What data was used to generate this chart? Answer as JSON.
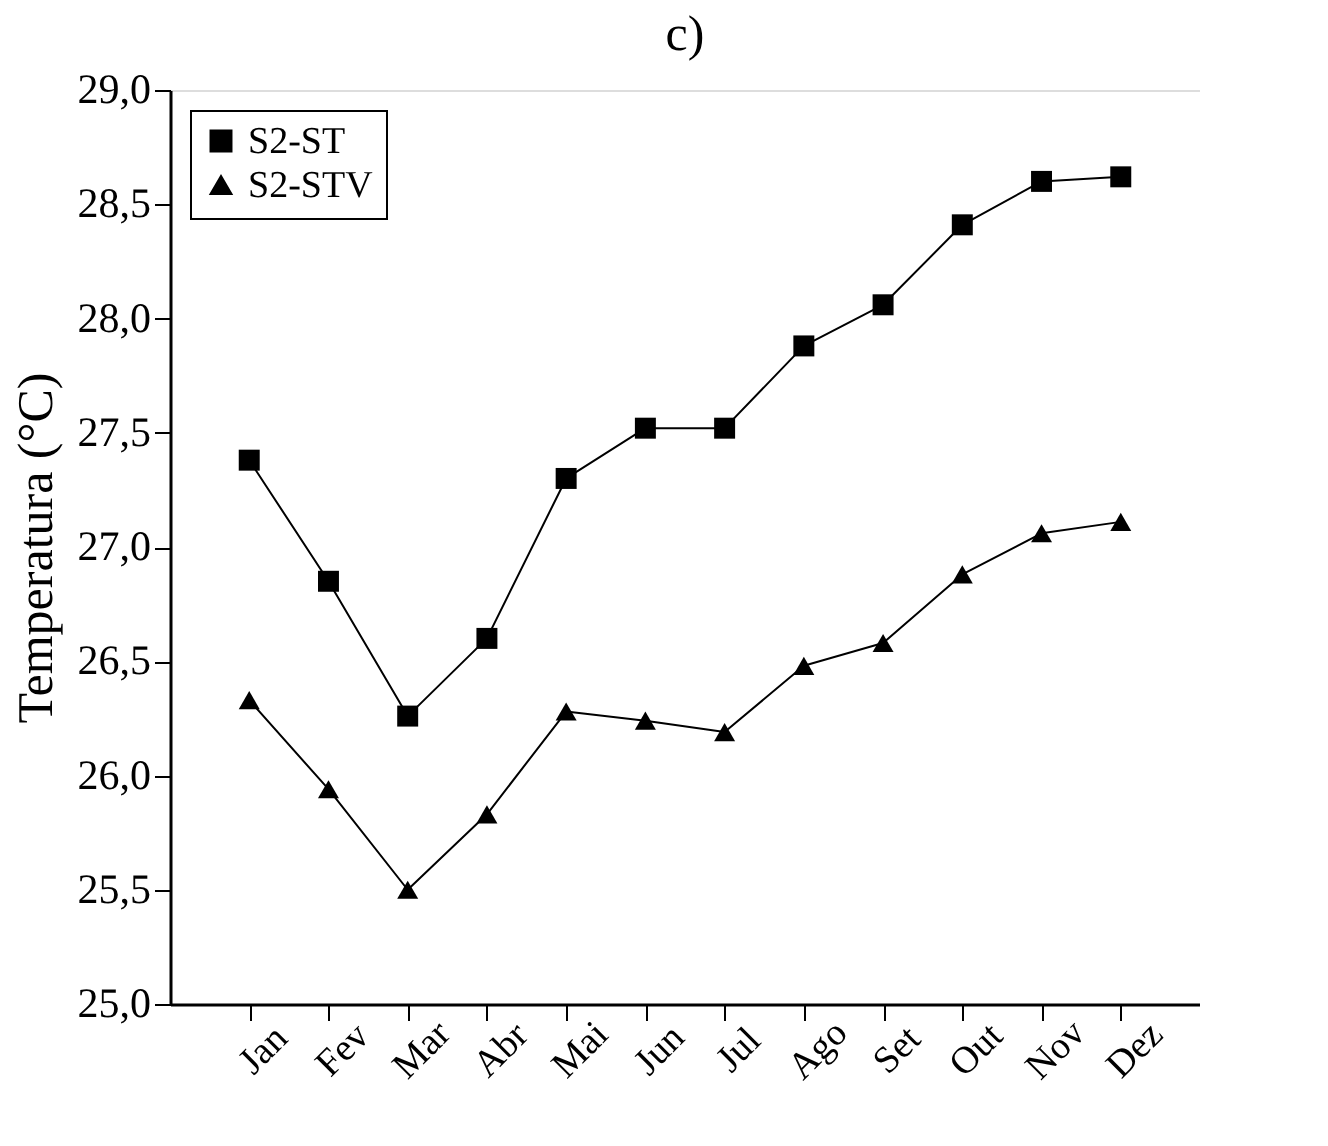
{
  "chart_data": {
    "type": "line",
    "title": "c)",
    "ylabel": "Temperatura (°C)",
    "categories": [
      "Jan",
      "Fev",
      "Mar",
      "Abr",
      "Mai",
      "Jun",
      "Jul",
      "Ago",
      "Set",
      "Out",
      "Nov",
      "Dez"
    ],
    "series": [
      {
        "name": "S2-ST",
        "color": "#000000",
        "marker": "square",
        "values": [
          27.38,
          26.85,
          26.26,
          26.6,
          27.3,
          27.52,
          27.52,
          27.88,
          28.06,
          28.41,
          28.6,
          28.62
        ]
      },
      {
        "name": "S2-STV",
        "color": "#000000",
        "marker": "triangle",
        "values": [
          26.33,
          25.94,
          25.5,
          25.83,
          26.28,
          26.24,
          26.19,
          26.48,
          26.58,
          26.88,
          27.06,
          27.11
        ]
      }
    ],
    "ylim": [
      25.0,
      29.0
    ],
    "yticks": [
      {
        "value": 25.0,
        "label": "25,0"
      },
      {
        "value": 25.5,
        "label": "25,5"
      },
      {
        "value": 26.0,
        "label": "26,0"
      },
      {
        "value": 26.5,
        "label": "26,5"
      },
      {
        "value": 27.0,
        "label": "27,0"
      },
      {
        "value": 27.5,
        "label": "27,5"
      },
      {
        "value": 28.0,
        "label": "28,0"
      },
      {
        "value": 28.5,
        "label": "28,5"
      },
      {
        "value": 29.0,
        "label": "29,0"
      }
    ],
    "grid": false,
    "legend": "top left",
    "line_style": "solid"
  }
}
